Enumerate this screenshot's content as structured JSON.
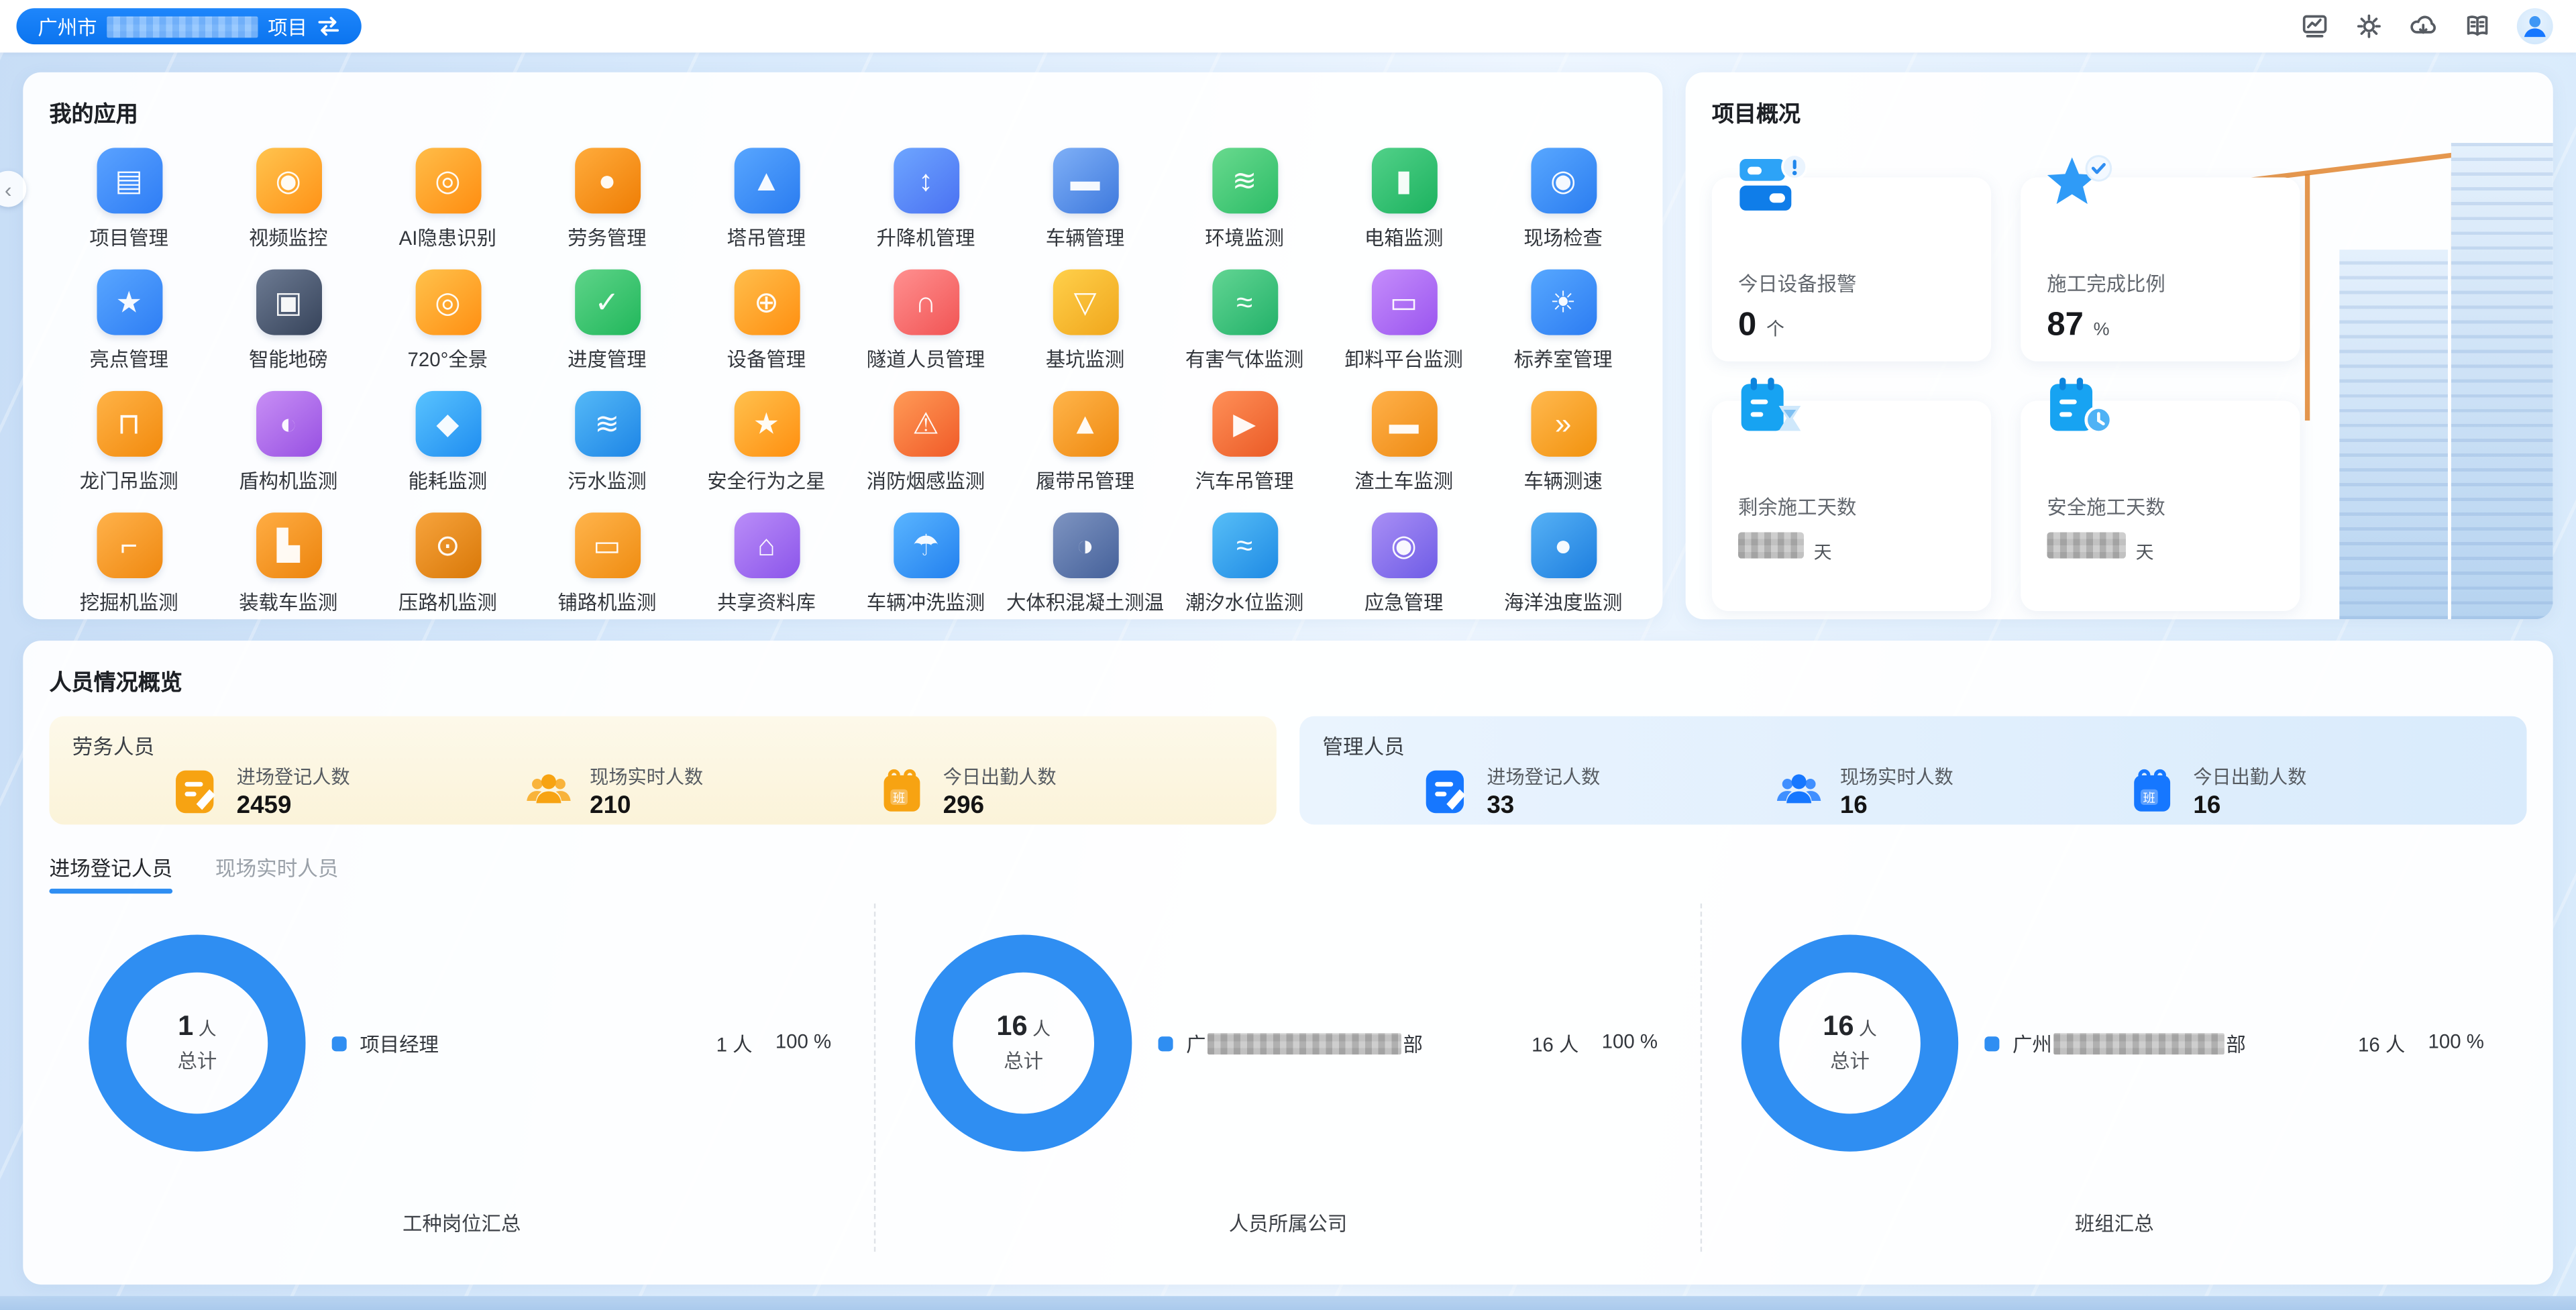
{
  "topbar": {
    "project_prefix": "广州市",
    "project_suffix": "项目",
    "project_redacted": true,
    "project_redact_width": 92,
    "icons": [
      "monitor-chart-icon",
      "settings-gear-icon",
      "cloud-download-icon",
      "manual-book-icon",
      "user-avatar"
    ]
  },
  "my_apps": {
    "title": "我的应用",
    "apps": [
      {
        "name": "项目管理",
        "glyph": "▤",
        "colors": [
          "#5aa2ff",
          "#2e7df5"
        ]
      },
      {
        "name": "视频监控",
        "glyph": "◉",
        "colors": [
          "#ffc44f",
          "#ff9216"
        ]
      },
      {
        "name": "AI隐患识别",
        "glyph": "◎",
        "colors": [
          "#ffbd49",
          "#ff8d10"
        ]
      },
      {
        "name": "劳务管理",
        "glyph": "●",
        "colors": [
          "#ffac3c",
          "#ef7d04"
        ]
      },
      {
        "name": "塔吊管理",
        "glyph": "▲",
        "colors": [
          "#58a6ff",
          "#2a7cf0"
        ]
      },
      {
        "name": "升降机管理",
        "glyph": "↕",
        "colors": [
          "#6ea6ff",
          "#4a71f2"
        ]
      },
      {
        "name": "车辆管理",
        "glyph": "▬",
        "colors": [
          "#7fb0f7",
          "#3e79dd"
        ]
      },
      {
        "name": "环境监测",
        "glyph": "≋",
        "colors": [
          "#69da8e",
          "#2cbc67"
        ]
      },
      {
        "name": "电箱监测",
        "glyph": "▮",
        "colors": [
          "#52d189",
          "#1cb25f"
        ]
      },
      {
        "name": "现场检查",
        "glyph": "◉",
        "colors": [
          "#58a7ff",
          "#2b7df0"
        ]
      },
      {
        "name": "亮点管理",
        "glyph": "★",
        "colors": [
          "#59a6ff",
          "#2e7ef4"
        ]
      },
      {
        "name": "智能地磅",
        "glyph": "▣",
        "colors": [
          "#6d7b93",
          "#36435a"
        ]
      },
      {
        "name": "720°全景",
        "glyph": "◎",
        "colors": [
          "#ffc24c",
          "#ff8f12"
        ]
      },
      {
        "name": "进度管理",
        "glyph": "✓",
        "colors": [
          "#5ed489",
          "#21b75b"
        ]
      },
      {
        "name": "设备管理",
        "glyph": "⊕",
        "colors": [
          "#ffbe4c",
          "#ff8f10"
        ]
      },
      {
        "name": "隧道人员管理",
        "glyph": "∩",
        "colors": [
          "#ff9090",
          "#f15454"
        ]
      },
      {
        "name": "基坑监测",
        "glyph": "▽",
        "colors": [
          "#ffd04b",
          "#f0a61c"
        ]
      },
      {
        "name": "有害气体监测",
        "glyph": "≈",
        "colors": [
          "#62d593",
          "#22b169"
        ]
      },
      {
        "name": "卸料平台监测",
        "glyph": "▭",
        "colors": [
          "#c58dfb",
          "#9a55ef"
        ]
      },
      {
        "name": "标养室管理",
        "glyph": "☀",
        "colors": [
          "#57a8ff",
          "#2c7cf2"
        ]
      },
      {
        "name": "龙门吊监测",
        "glyph": "⊓",
        "colors": [
          "#ffb347",
          "#f28a0d"
        ]
      },
      {
        "name": "盾构机监测",
        "glyph": "◐",
        "colors": [
          "#c88ff5",
          "#9750e2"
        ]
      },
      {
        "name": "能耗监测",
        "glyph": "◆",
        "colors": [
          "#59c3ff",
          "#1f8df0"
        ]
      },
      {
        "name": "污水监测",
        "glyph": "≋",
        "colors": [
          "#55b9f7",
          "#1d85e6"
        ]
      },
      {
        "name": "安全行为之星",
        "glyph": "★",
        "colors": [
          "#ffc14e",
          "#ff8f0f"
        ]
      },
      {
        "name": "消防烟感监测",
        "glyph": "⚠",
        "colors": [
          "#ff9b57",
          "#f05a28"
        ]
      },
      {
        "name": "履带吊管理",
        "glyph": "▲",
        "colors": [
          "#ffb54b",
          "#ef8910"
        ]
      },
      {
        "name": "汽车吊管理",
        "glyph": "▶",
        "colors": [
          "#ff9058",
          "#ea5a26"
        ]
      },
      {
        "name": "渣土车监测",
        "glyph": "▬",
        "colors": [
          "#ffb14a",
          "#ee8a13"
        ]
      },
      {
        "name": "车辆测速",
        "glyph": "»",
        "colors": [
          "#ffb94f",
          "#f2920e"
        ]
      },
      {
        "name": "挖掘机监测",
        "glyph": "⌐",
        "colors": [
          "#ffb24b",
          "#ef8810"
        ]
      },
      {
        "name": "装载车监测",
        "glyph": "▙",
        "colors": [
          "#ffad44",
          "#ec840d"
        ]
      },
      {
        "name": "压路机监测",
        "glyph": "⊙",
        "colors": [
          "#f7a43d",
          "#d97808"
        ]
      },
      {
        "name": "铺路机监测",
        "glyph": "▭",
        "colors": [
          "#ffb44c",
          "#ef8c11"
        ]
      },
      {
        "name": "共享资料库",
        "glyph": "⌂",
        "colors": [
          "#ba8df8",
          "#8b55ea"
        ]
      },
      {
        "name": "车辆冲洗监测",
        "glyph": "☂",
        "colors": [
          "#5ab5ff",
          "#2280ef"
        ]
      },
      {
        "name": "大体积混凝土测温",
        "glyph": "◑",
        "colors": [
          "#7e94c1",
          "#45619a"
        ]
      },
      {
        "name": "潮汐水位监测",
        "glyph": "≈",
        "colors": [
          "#57bef7",
          "#1e8ae4"
        ]
      },
      {
        "name": "应急管理",
        "glyph": "◉",
        "colors": [
          "#a98ff5",
          "#6e5ce6"
        ]
      },
      {
        "name": "海洋浊度监测",
        "glyph": "●",
        "colors": [
          "#56b1f5",
          "#1d7edf"
        ]
      }
    ]
  },
  "project_overview": {
    "title": "项目概况",
    "cards": [
      {
        "icon": "alarm-panels",
        "label": "今日设备报警",
        "value": "0",
        "unit": "个",
        "redacted": false
      },
      {
        "icon": "star-check",
        "label": "施工完成比例",
        "value": "87",
        "unit": "%",
        "redacted": false
      },
      {
        "icon": "calendar-hourglass",
        "label": "剩余施工天数",
        "value": "",
        "unit": "天",
        "redacted": true,
        "redact_width": 40
      },
      {
        "icon": "calendar-clock",
        "label": "安全施工天数",
        "value": "",
        "unit": "天",
        "redacted": true,
        "redact_width": 48
      }
    ]
  },
  "personnel": {
    "title": "人员情况概览",
    "groups": [
      {
        "name": "劳务人员",
        "theme": "orange",
        "accent": "#f7a312",
        "stats": [
          {
            "icon": "register-book",
            "label": "进场登记人数",
            "value": "2459"
          },
          {
            "icon": "people-group",
            "label": "现场实时人数",
            "value": "210"
          },
          {
            "icon": "attendance-calendar",
            "label": "今日出勤人数",
            "value": "296"
          }
        ]
      },
      {
        "name": "管理人员",
        "theme": "blue",
        "accent": "#1677ff",
        "stats": [
          {
            "icon": "register-book",
            "label": "进场登记人数",
            "value": "33"
          },
          {
            "icon": "people-group",
            "label": "现场实时人数",
            "value": "16"
          },
          {
            "icon": "attendance-calendar",
            "label": "今日出勤人数",
            "value": "16"
          }
        ]
      }
    ],
    "tabs": [
      {
        "label": "进场登记人员",
        "active": true
      },
      {
        "label": "现场实时人员",
        "active": false
      }
    ],
    "charts": [
      {
        "center_value": "1",
        "center_unit": "人",
        "center_label": "总计",
        "legend_prefix": "项目经理",
        "legend_suffix": "",
        "legend_redacted": false,
        "value_text": "1 人",
        "percent_text": "100 %",
        "caption": "工种岗位汇总",
        "chart_data": {
          "type": "pie",
          "title": "工种岗位汇总",
          "unit": "人",
          "total": 1,
          "segments": [
            {
              "label": "项目经理",
              "value": 1,
              "percent": 100,
              "color": "#2f8ef2"
            }
          ]
        }
      },
      {
        "center_value": "16",
        "center_unit": "人",
        "center_label": "总计",
        "legend_prefix": "广",
        "legend_suffix": "部",
        "legend_redacted": true,
        "redact_width": 118,
        "value_text": "16 人",
        "percent_text": "100 %",
        "caption": "人员所属公司",
        "chart_data": {
          "type": "pie",
          "title": "人员所属公司",
          "unit": "人",
          "total": 16,
          "segments": [
            {
              "label": "广***部",
              "label_redacted": true,
              "value": 16,
              "percent": 100,
              "color": "#2f8ef2"
            }
          ]
        }
      },
      {
        "center_value": "16",
        "center_unit": "人",
        "center_label": "总计",
        "legend_prefix": "广州",
        "legend_suffix": "部",
        "legend_redacted": true,
        "redact_width": 104,
        "value_text": "16 人",
        "percent_text": "100 %",
        "caption": "班组汇总",
        "chart_data": {
          "type": "pie",
          "title": "班组汇总",
          "unit": "人",
          "total": 16,
          "segments": [
            {
              "label": "广州***部",
              "label_redacted": true,
              "value": 16,
              "percent": 100,
              "color": "#2f8ef2"
            }
          ]
        }
      }
    ]
  }
}
